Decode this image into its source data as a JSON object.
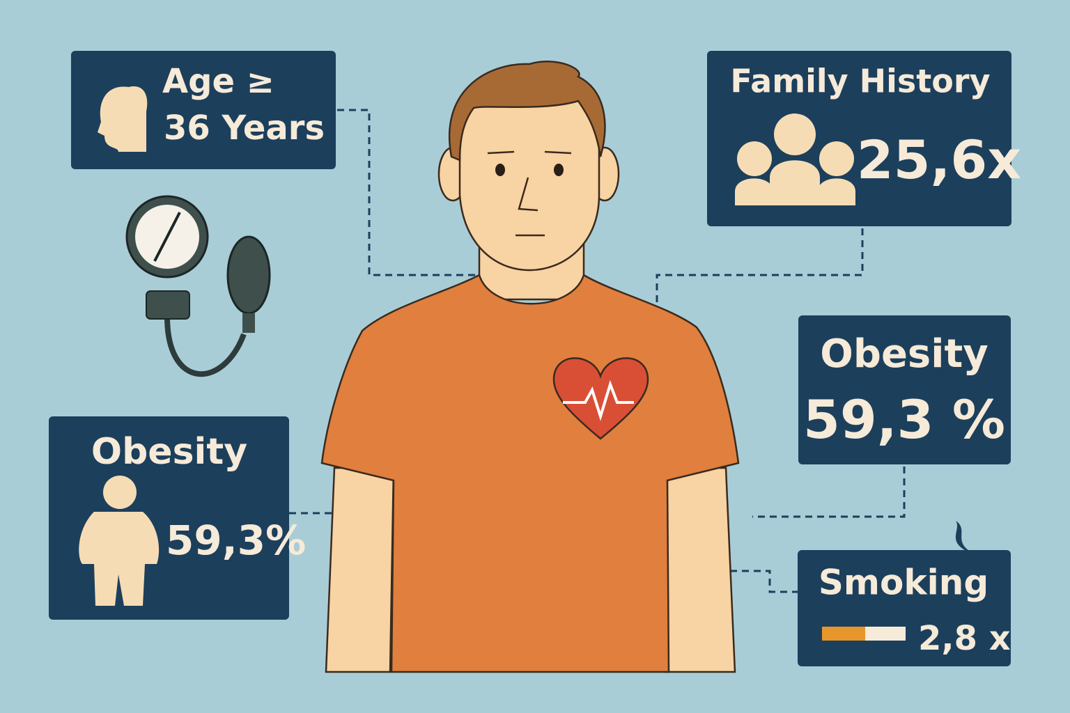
{
  "panels": [
    {
      "title": "Age ≥",
      "value": "36 Years"
    },
    {
      "title": "Family History",
      "value": "25,6x"
    },
    {
      "title": "Obesity",
      "value": "59,3 %"
    },
    {
      "title": "Obesity",
      "value": "59,3%"
    },
    {
      "title": "Smoking",
      "value": "2,8 x"
    }
  ]
}
